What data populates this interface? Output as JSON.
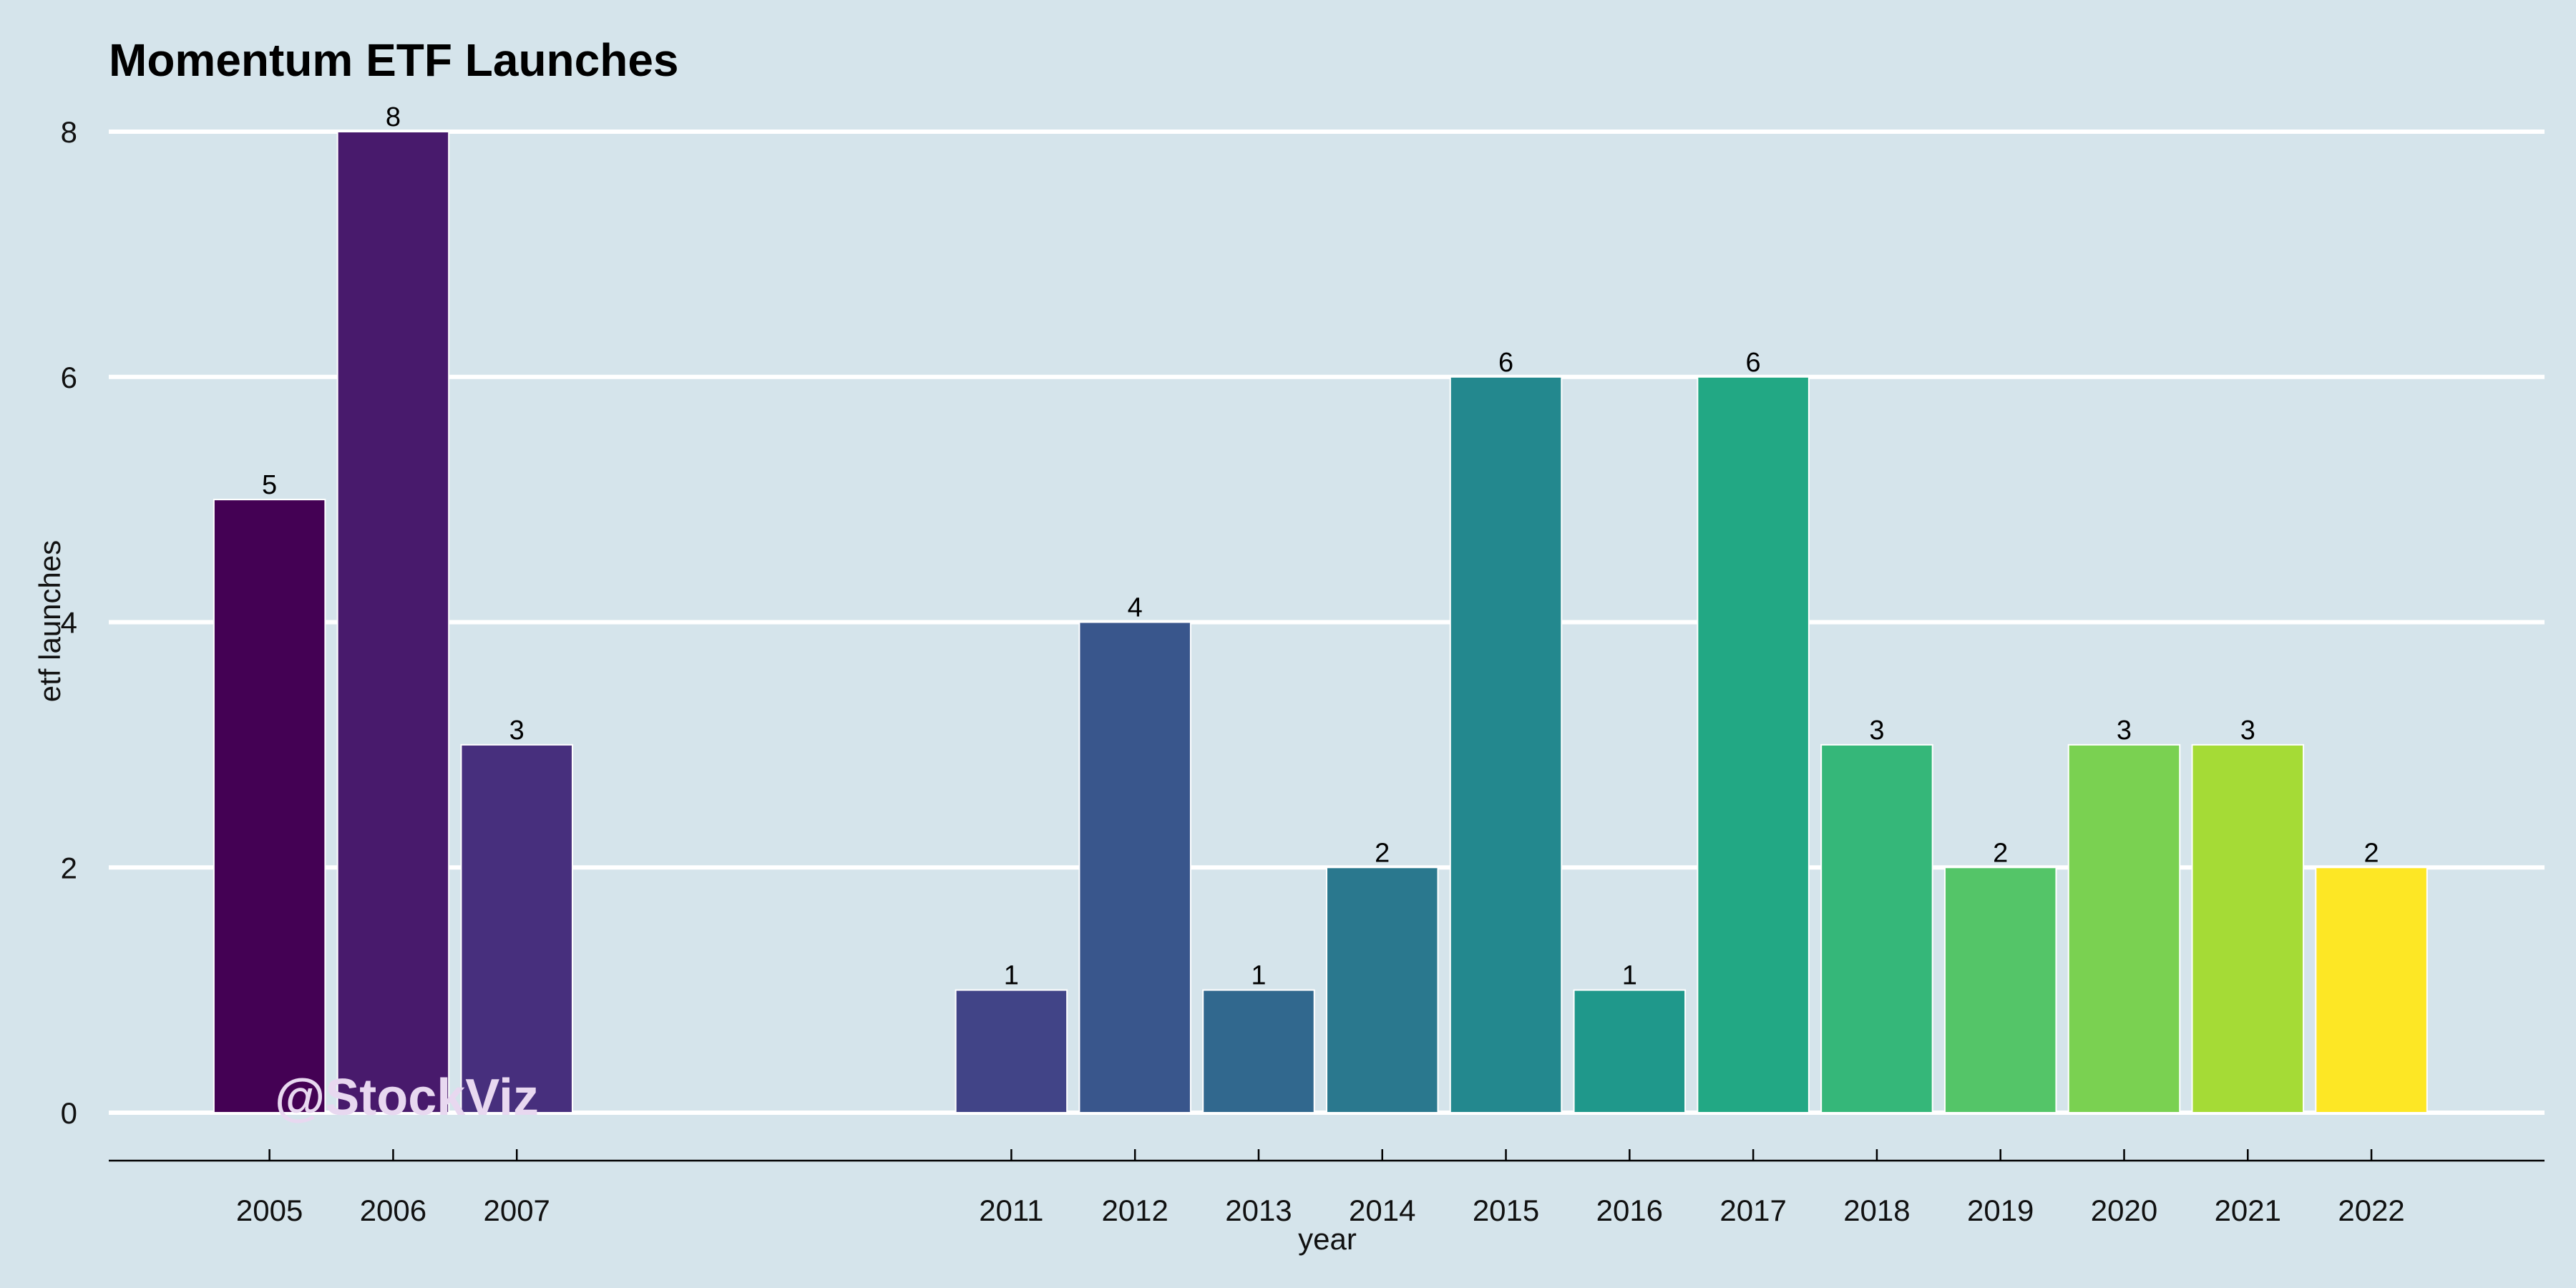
{
  "chart_data": {
    "type": "bar",
    "title": "Momentum ETF Launches",
    "xlabel": "year",
    "ylabel": "etf launches",
    "categories": [
      "2005",
      "2006",
      "2007",
      "2011",
      "2012",
      "2013",
      "2014",
      "2015",
      "2016",
      "2017",
      "2018",
      "2019",
      "2020",
      "2021",
      "2022"
    ],
    "values": [
      5,
      8,
      3,
      1,
      4,
      1,
      2,
      6,
      1,
      6,
      3,
      2,
      3,
      3,
      2
    ],
    "x_range": [
      2003.7,
      2023.4
    ],
    "ylim": [
      0,
      8
    ],
    "y_ticks": [
      0,
      2,
      4,
      6,
      8
    ],
    "grid": "horizontal major lines",
    "legend": "none",
    "colors": [
      "#440154",
      "#481a6c",
      "#472f7d",
      "#414487",
      "#39568c",
      "#31688e",
      "#2a788e",
      "#23888e",
      "#1f988b",
      "#22a884",
      "#35b779",
      "#54c568",
      "#7ad151",
      "#a5db36",
      "#fde725"
    ]
  },
  "watermark": "@StockViz",
  "background_color": "#d5e4eb"
}
